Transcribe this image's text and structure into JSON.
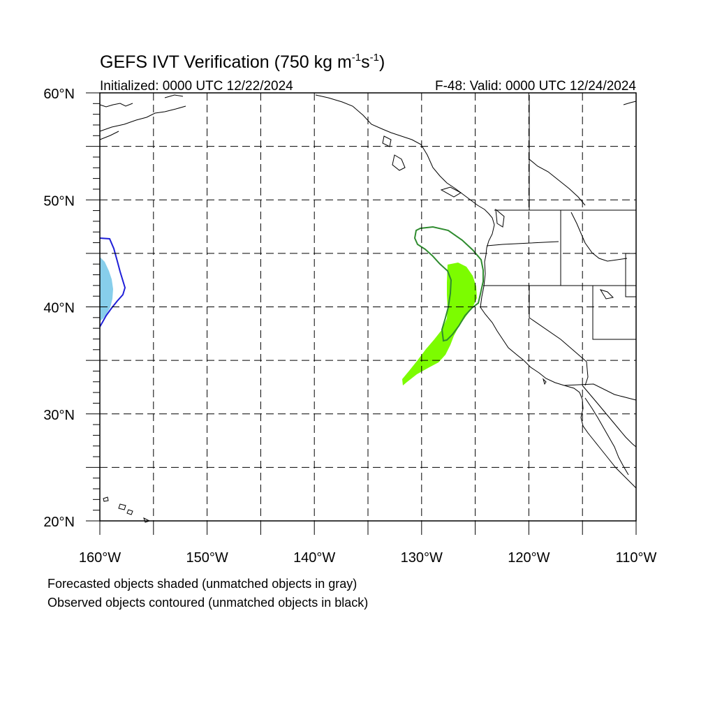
{
  "title": {
    "main": "GEFS IVT Verification (750 kg m",
    "sup1": "-1",
    "mid": "s",
    "sup2": "-1",
    "close": ")"
  },
  "initialized": "Initialized: 0000 UTC 12/22/2024",
  "valid": "F-48: Valid: 0000 UTC 12/24/2024",
  "lat_labels": [
    "60°N",
    "50°N",
    "40°N",
    "30°N",
    "20°N"
  ],
  "lon_labels": [
    "160°W",
    "150°W",
    "140°W",
    "130°W",
    "120°W",
    "110°W"
  ],
  "footer": {
    "line1": "Forecasted objects shaded (unmatched objects in gray)",
    "line2": "Observed objects contoured (unmatched objects in black)"
  },
  "extent": {
    "lon_min": -160,
    "lon_max": -110,
    "lat_min": 20,
    "lat_max": 60
  },
  "objects": [
    {
      "kind": "forecast-shaded",
      "color": "#87ceeb",
      "pair": "blue"
    },
    {
      "kind": "observed-contour",
      "color": "#1f1fd8",
      "pair": "blue"
    },
    {
      "kind": "forecast-shaded",
      "color": "#7cfc00",
      "pair": "green"
    },
    {
      "kind": "observed-contour",
      "color": "#2e8b2e",
      "pair": "green"
    }
  ]
}
